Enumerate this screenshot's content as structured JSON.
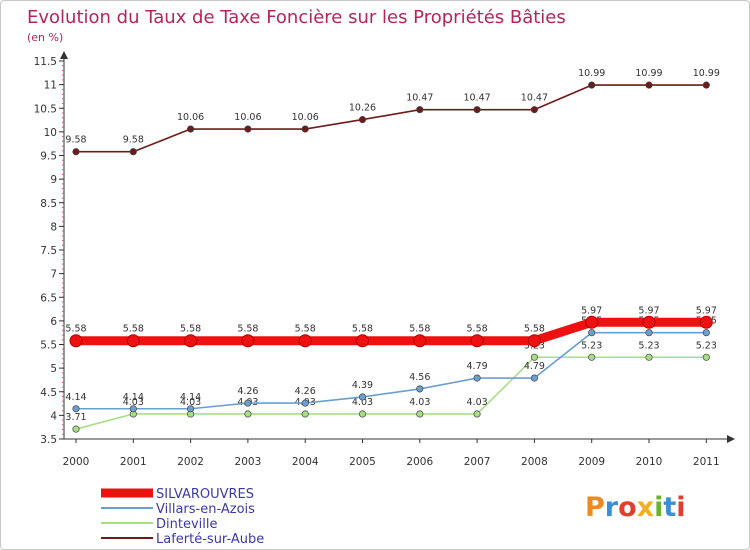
{
  "chart_data": {
    "type": "line",
    "title": "Evolution du Taux de Taxe Foncière sur les Propriétés Bâties",
    "subtitle": "(en %)",
    "xlabel": "",
    "ylabel": "(en %)",
    "categories": [
      "2000",
      "2001",
      "2002",
      "2003",
      "2004",
      "2005",
      "2006",
      "2007",
      "2008",
      "2009",
      "2010",
      "2011"
    ],
    "y_ticks": [
      "3.5",
      "4",
      "4.5",
      "5",
      "5.5",
      "6",
      "6.5",
      "7",
      "7.5",
      "8",
      "8.5",
      "9",
      "9.5",
      "10",
      "10.5",
      "11",
      "11.5"
    ],
    "ylim": [
      3.5,
      11.5
    ],
    "grid": false,
    "legend_position": "bottom-left",
    "series": [
      {
        "name": "Laferté-sur-Aube",
        "color": "#6e1a1a",
        "values": [
          9.58,
          9.58,
          10.06,
          10.06,
          10.06,
          10.26,
          10.47,
          10.47,
          10.47,
          10.99,
          10.99,
          10.99
        ],
        "labels": [
          "9.58",
          "9.58",
          "10.06",
          "10.06",
          "10.06",
          "10.26",
          "10.47",
          "10.47",
          "10.47",
          "10.99",
          "10.99",
          "10.99"
        ]
      },
      {
        "name": "Dinteville",
        "color": "#a8de84",
        "values": [
          3.71,
          4.03,
          4.03,
          4.03,
          4.03,
          4.03,
          4.03,
          4.03,
          5.23,
          5.23,
          5.23,
          5.23
        ],
        "labels": [
          "3.71",
          "4.03",
          "4.03",
          "4.03",
          "4.03",
          "4.03",
          "4.03",
          "4.03",
          "5.23",
          "5.23",
          "5.23",
          "5.23"
        ]
      },
      {
        "name": "Villars-en-Azois",
        "color": "#6b9fd0",
        "values": [
          4.14,
          4.14,
          4.14,
          4.26,
          4.26,
          4.39,
          4.56,
          4.79,
          4.79,
          5.75,
          5.75,
          5.75
        ],
        "labels": [
          "4.14",
          "4.14",
          "4.14",
          "4.26",
          "4.26",
          "4.39",
          "4.56",
          "4.79",
          "4.79",
          "5.75",
          "5.75",
          "5.75"
        ]
      },
      {
        "name": "SILVAROUVRES",
        "color": "#ee1111",
        "values": [
          5.58,
          5.58,
          5.58,
          5.58,
          5.58,
          5.58,
          5.58,
          5.58,
          5.58,
          5.97,
          5.97,
          5.97
        ],
        "labels": [
          "5.58",
          "5.58",
          "5.58",
          "5.58",
          "5.58",
          "5.58",
          "5.58",
          "5.58",
          "5.58",
          "5.97",
          "5.97",
          "5.97"
        ]
      }
    ],
    "legend": [
      "SILVAROUVRES",
      "Villars-en-Azois",
      "Dinteville",
      "Laferté-sur-Aube"
    ]
  },
  "brand": {
    "name": "Proxiti",
    "letters": [
      "P",
      "r",
      "o",
      "x",
      "i",
      "t",
      "i"
    ],
    "colors": [
      "#f08a1e",
      "#3a8fd6",
      "#e43c2f",
      "#f2b01e",
      "#6ab42d",
      "#3a8fd6",
      "#e43c2f"
    ]
  }
}
